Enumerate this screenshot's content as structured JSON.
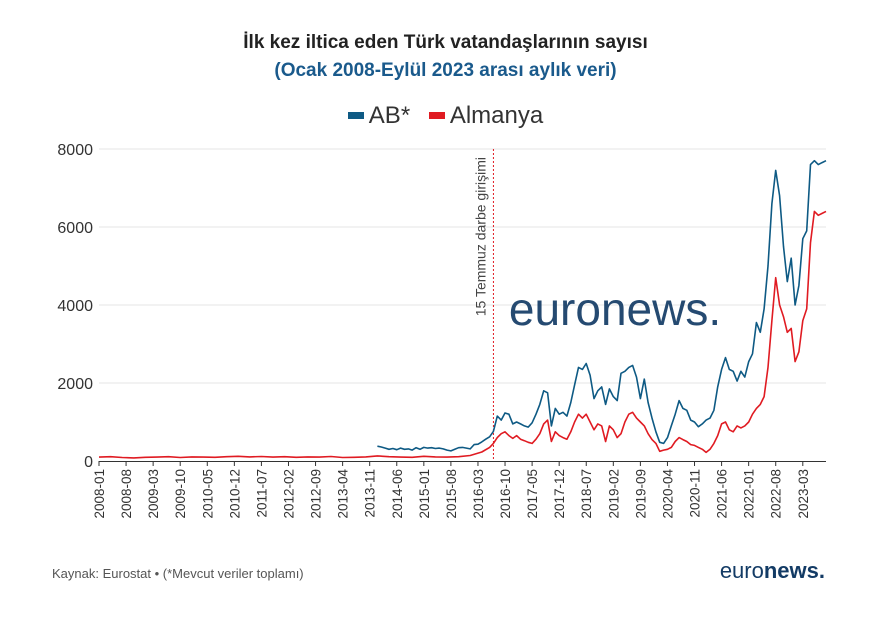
{
  "chart_data": {
    "type": "line",
    "title": "İlk kez iltica eden Türk vatandaşlarının sayısı",
    "subtitle": "(Ocak 2008-Eylül 2023 arası aylık veri)",
    "ylim": [
      0,
      8000
    ],
    "yticks": [
      0,
      2000,
      4000,
      6000,
      8000
    ],
    "xticks": [
      "2008-01",
      "2008-08",
      "2009-03",
      "2009-10",
      "2010-05",
      "2010-12",
      "2011-07",
      "2012-02",
      "2012-09",
      "2013-04",
      "2013-11",
      "2014-06",
      "2015-01",
      "2015-08",
      "2016-03",
      "2016-10",
      "2017-05",
      "2017-12",
      "2018-07",
      "2019-02",
      "2019-09",
      "2020-04",
      "2020-11",
      "2021-06",
      "2022-01",
      "2022-08",
      "2023-03"
    ],
    "annotation": {
      "label": "15 Temmuz darbe girişimi",
      "x": "2016-07"
    },
    "series": [
      {
        "name": "AB*",
        "color": "#0e5a84",
        "points": [
          [
            "2014-01",
            380
          ],
          [
            "2014-02",
            360
          ],
          [
            "2014-03",
            330
          ],
          [
            "2014-04",
            300
          ],
          [
            "2014-05",
            320
          ],
          [
            "2014-06",
            290
          ],
          [
            "2014-07",
            330
          ],
          [
            "2014-08",
            300
          ],
          [
            "2014-09",
            310
          ],
          [
            "2014-10",
            280
          ],
          [
            "2014-11",
            340
          ],
          [
            "2014-12",
            300
          ],
          [
            "2015-01",
            350
          ],
          [
            "2015-02",
            330
          ],
          [
            "2015-03",
            340
          ],
          [
            "2015-04",
            320
          ],
          [
            "2015-05",
            330
          ],
          [
            "2015-06",
            310
          ],
          [
            "2015-07",
            280
          ],
          [
            "2015-08",
            260
          ],
          [
            "2015-09",
            300
          ],
          [
            "2015-10",
            340
          ],
          [
            "2015-11",
            350
          ],
          [
            "2015-12",
            330
          ],
          [
            "2016-01",
            310
          ],
          [
            "2016-02",
            420
          ],
          [
            "2016-03",
            430
          ],
          [
            "2016-04",
            490
          ],
          [
            "2016-05",
            560
          ],
          [
            "2016-06",
            620
          ],
          [
            "2016-07",
            760
          ],
          [
            "2016-08",
            1150
          ],
          [
            "2016-09",
            1050
          ],
          [
            "2016-10",
            1230
          ],
          [
            "2016-11",
            1200
          ],
          [
            "2016-12",
            950
          ],
          [
            "2017-01",
            1000
          ],
          [
            "2017-02",
            950
          ],
          [
            "2017-03",
            900
          ],
          [
            "2017-04",
            870
          ],
          [
            "2017-05",
            980
          ],
          [
            "2017-06",
            1200
          ],
          [
            "2017-07",
            1450
          ],
          [
            "2017-08",
            1800
          ],
          [
            "2017-09",
            1750
          ],
          [
            "2017-10",
            900
          ],
          [
            "2017-11",
            1350
          ],
          [
            "2017-12",
            1200
          ],
          [
            "2018-01",
            1250
          ],
          [
            "2018-02",
            1150
          ],
          [
            "2018-03",
            1500
          ],
          [
            "2018-04",
            1950
          ],
          [
            "2018-05",
            2400
          ],
          [
            "2018-06",
            2350
          ],
          [
            "2018-07",
            2500
          ],
          [
            "2018-08",
            2200
          ],
          [
            "2018-09",
            1600
          ],
          [
            "2018-10",
            1800
          ],
          [
            "2018-11",
            1900
          ],
          [
            "2018-12",
            1450
          ],
          [
            "2019-01",
            1850
          ],
          [
            "2019-02",
            1650
          ],
          [
            "2019-03",
            1550
          ],
          [
            "2019-04",
            2250
          ],
          [
            "2019-05",
            2300
          ],
          [
            "2019-06",
            2400
          ],
          [
            "2019-07",
            2450
          ],
          [
            "2019-08",
            2150
          ],
          [
            "2019-09",
            1600
          ],
          [
            "2019-10",
            2100
          ],
          [
            "2019-11",
            1500
          ],
          [
            "2019-12",
            1100
          ],
          [
            "2020-01",
            750
          ],
          [
            "2020-02",
            480
          ],
          [
            "2020-03",
            450
          ],
          [
            "2020-04",
            600
          ],
          [
            "2020-05",
            900
          ],
          [
            "2020-06",
            1200
          ],
          [
            "2020-07",
            1550
          ],
          [
            "2020-08",
            1350
          ],
          [
            "2020-09",
            1300
          ],
          [
            "2020-10",
            1050
          ],
          [
            "2020-11",
            1000
          ],
          [
            "2020-12",
            880
          ],
          [
            "2021-01",
            950
          ],
          [
            "2021-02",
            1050
          ],
          [
            "2021-03",
            1100
          ],
          [
            "2021-04",
            1300
          ],
          [
            "2021-05",
            1900
          ],
          [
            "2021-06",
            2350
          ],
          [
            "2021-07",
            2650
          ],
          [
            "2021-08",
            2350
          ],
          [
            "2021-09",
            2300
          ],
          [
            "2021-10",
            2050
          ],
          [
            "2021-11",
            2300
          ],
          [
            "2021-12",
            2150
          ],
          [
            "2022-01",
            2550
          ],
          [
            "2022-02",
            2750
          ],
          [
            "2022-03",
            3550
          ],
          [
            "2022-04",
            3300
          ],
          [
            "2022-05",
            3900
          ],
          [
            "2022-06",
            5000
          ],
          [
            "2022-07",
            6600
          ],
          [
            "2022-08",
            7450
          ],
          [
            "2022-09",
            6800
          ],
          [
            "2022-10",
            5500
          ],
          [
            "2022-11",
            4600
          ],
          [
            "2022-12",
            5200
          ],
          [
            "2023-01",
            4000
          ],
          [
            "2023-02",
            4500
          ],
          [
            "2023-03",
            5700
          ],
          [
            "2023-04",
            5900
          ],
          [
            "2023-05",
            7600
          ],
          [
            "2023-06",
            7700
          ],
          [
            "2023-07",
            7600
          ],
          [
            "2023-08",
            7650
          ],
          [
            "2023-09",
            7700
          ]
        ]
      },
      {
        "name": "Almanya",
        "color": "#e01b22",
        "points": [
          [
            "2008-01",
            100
          ],
          [
            "2008-04",
            110
          ],
          [
            "2008-07",
            90
          ],
          [
            "2008-10",
            80
          ],
          [
            "2009-01",
            95
          ],
          [
            "2009-04",
            100
          ],
          [
            "2009-07",
            110
          ],
          [
            "2009-10",
            90
          ],
          [
            "2010-01",
            105
          ],
          [
            "2010-04",
            100
          ],
          [
            "2010-07",
            95
          ],
          [
            "2010-10",
            110
          ],
          [
            "2011-01",
            120
          ],
          [
            "2011-04",
            105
          ],
          [
            "2011-07",
            115
          ],
          [
            "2011-10",
            100
          ],
          [
            "2012-01",
            110
          ],
          [
            "2012-04",
            95
          ],
          [
            "2012-07",
            105
          ],
          [
            "2012-10",
            100
          ],
          [
            "2013-01",
            115
          ],
          [
            "2013-04",
            90
          ],
          [
            "2013-07",
            95
          ],
          [
            "2013-10",
            105
          ],
          [
            "2014-01",
            130
          ],
          [
            "2014-04",
            110
          ],
          [
            "2014-07",
            100
          ],
          [
            "2014-10",
            95
          ],
          [
            "2015-01",
            120
          ],
          [
            "2015-04",
            105
          ],
          [
            "2015-07",
            100
          ],
          [
            "2015-10",
            110
          ],
          [
            "2016-01",
            140
          ],
          [
            "2016-04",
            230
          ],
          [
            "2016-06",
            350
          ],
          [
            "2016-07",
            450
          ],
          [
            "2016-08",
            600
          ],
          [
            "2016-09",
            700
          ],
          [
            "2016-10",
            750
          ],
          [
            "2016-11",
            650
          ],
          [
            "2016-12",
            580
          ],
          [
            "2017-01",
            650
          ],
          [
            "2017-02",
            560
          ],
          [
            "2017-03",
            520
          ],
          [
            "2017-04",
            480
          ],
          [
            "2017-05",
            450
          ],
          [
            "2017-06",
            560
          ],
          [
            "2017-07",
            700
          ],
          [
            "2017-08",
            950
          ],
          [
            "2017-09",
            1050
          ],
          [
            "2017-10",
            500
          ],
          [
            "2017-11",
            750
          ],
          [
            "2017-12",
            650
          ],
          [
            "2018-01",
            600
          ],
          [
            "2018-02",
            560
          ],
          [
            "2018-03",
            750
          ],
          [
            "2018-04",
            1000
          ],
          [
            "2018-05",
            1200
          ],
          [
            "2018-06",
            1100
          ],
          [
            "2018-07",
            1200
          ],
          [
            "2018-08",
            1000
          ],
          [
            "2018-09",
            800
          ],
          [
            "2018-10",
            950
          ],
          [
            "2018-11",
            900
          ],
          [
            "2018-12",
            500
          ],
          [
            "2019-01",
            900
          ],
          [
            "2019-02",
            800
          ],
          [
            "2019-03",
            600
          ],
          [
            "2019-04",
            700
          ],
          [
            "2019-05",
            1000
          ],
          [
            "2019-06",
            1200
          ],
          [
            "2019-07",
            1250
          ],
          [
            "2019-08",
            1100
          ],
          [
            "2019-09",
            1000
          ],
          [
            "2019-10",
            900
          ],
          [
            "2019-11",
            700
          ],
          [
            "2019-12",
            550
          ],
          [
            "2020-01",
            450
          ],
          [
            "2020-02",
            250
          ],
          [
            "2020-03",
            280
          ],
          [
            "2020-04",
            300
          ],
          [
            "2020-05",
            350
          ],
          [
            "2020-06",
            500
          ],
          [
            "2020-07",
            600
          ],
          [
            "2020-08",
            550
          ],
          [
            "2020-09",
            500
          ],
          [
            "2020-10",
            420
          ],
          [
            "2020-11",
            400
          ],
          [
            "2020-12",
            350
          ],
          [
            "2021-01",
            300
          ],
          [
            "2021-02",
            220
          ],
          [
            "2021-03",
            300
          ],
          [
            "2021-04",
            450
          ],
          [
            "2021-05",
            650
          ],
          [
            "2021-06",
            950
          ],
          [
            "2021-07",
            1000
          ],
          [
            "2021-08",
            800
          ],
          [
            "2021-09",
            750
          ],
          [
            "2021-10",
            900
          ],
          [
            "2021-11",
            850
          ],
          [
            "2021-12",
            900
          ],
          [
            "2022-01",
            1000
          ],
          [
            "2022-02",
            1200
          ],
          [
            "2022-03",
            1350
          ],
          [
            "2022-04",
            1450
          ],
          [
            "2022-05",
            1650
          ],
          [
            "2022-06",
            2400
          ],
          [
            "2022-07",
            3600
          ],
          [
            "2022-08",
            4700
          ],
          [
            "2022-09",
            4000
          ],
          [
            "2022-10",
            3700
          ],
          [
            "2022-11",
            3300
          ],
          [
            "2022-12",
            3400
          ],
          [
            "2023-01",
            2550
          ],
          [
            "2023-02",
            2800
          ],
          [
            "2023-03",
            3600
          ],
          [
            "2023-04",
            3900
          ],
          [
            "2023-05",
            5600
          ],
          [
            "2023-06",
            6400
          ],
          [
            "2023-07",
            6300
          ],
          [
            "2023-08",
            6350
          ],
          [
            "2023-09",
            6400
          ]
        ]
      }
    ]
  },
  "watermark": "euronews.",
  "footer": {
    "source": "Kaynak: Eurostat • (*Mevcut veriler toplamı)",
    "logo_light": "euro",
    "logo_bold": "news."
  },
  "colors": {
    "ab": "#0e5a84",
    "almanya": "#e01b22",
    "grid": "#e4e4e4",
    "annotation": "#e01b22"
  }
}
